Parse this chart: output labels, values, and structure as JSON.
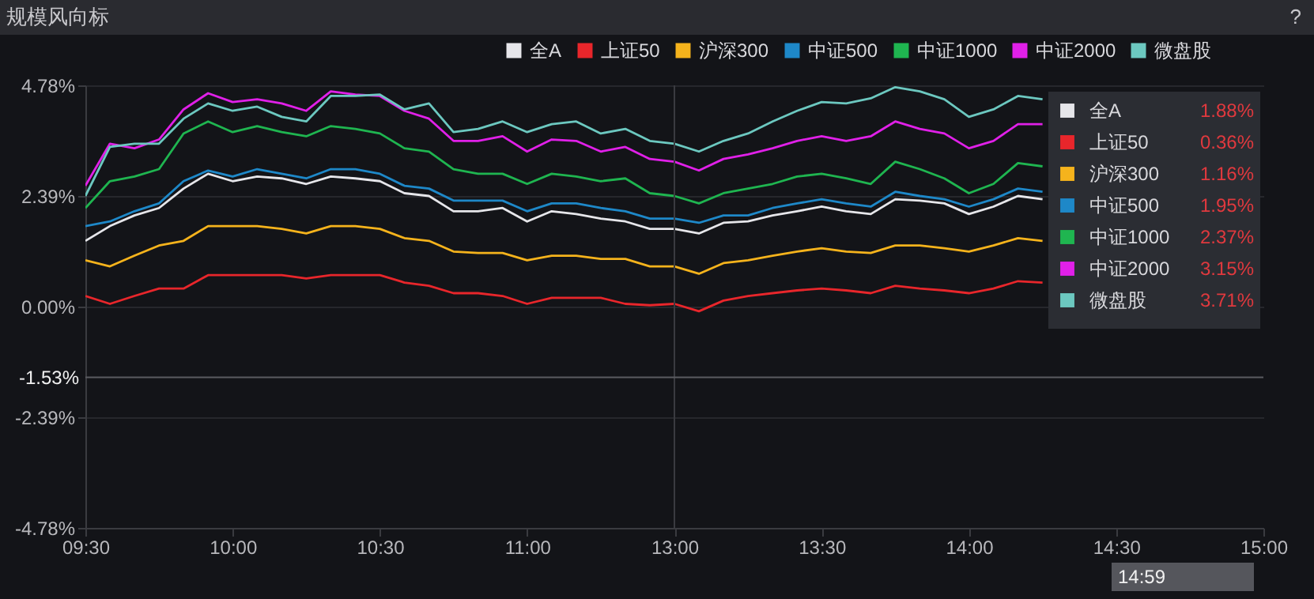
{
  "chart_data": {
    "type": "line",
    "title": "规模风向标",
    "annotations": [
      "?",
      "14:59",
      "1.88%",
      "0.36%",
      "1.16%",
      "1.95%",
      "2.37%",
      "3.15%",
      "3.71%"
    ],
    "categories": [
      "09:30",
      null,
      null,
      null,
      null,
      null,
      "10:00",
      null,
      null,
      null,
      null,
      null,
      "10:30",
      null,
      null,
      null,
      null,
      null,
      "11:00",
      null,
      null,
      null,
      null,
      null,
      "13:00",
      null,
      null,
      null,
      null,
      null,
      "13:30",
      null,
      null,
      null,
      null,
      null,
      "14:00",
      null,
      null,
      null,
      null,
      null,
      "14:30",
      null,
      null,
      null,
      null,
      null,
      "15:00"
    ],
    "ylim": [
      -4.78,
      4.78
    ],
    "yticks": [
      {
        "value": -4.78,
        "label": "-4.78%"
      },
      {
        "value": -2.39,
        "label": "-2.39%"
      },
      {
        "value": 0,
        "label": "0.00%"
      },
      {
        "value": 2.39,
        "label": "2.39%"
      },
      {
        "value": 4.78,
        "label": "4.78%"
      }
    ],
    "grid": "y",
    "legend": "top right",
    "ref_lines": [
      {
        "axis": "x",
        "value": "13:00",
        "label": null,
        "color": "#3a3b40"
      },
      {
        "axis": "y",
        "value": -1.53,
        "label": "-1.53%",
        "color": "#5a5b60"
      }
    ],
    "series": [
      {
        "name": "全A",
        "color": "#e6e6ea",
        "values": [
          1.42,
          1.74,
          1.97,
          2.13,
          2.55,
          2.87,
          2.71,
          2.81,
          2.77,
          2.65,
          2.81,
          2.77,
          2.71,
          2.45,
          2.39,
          2.06,
          2.06,
          2.13,
          1.84,
          2.06,
          2.0,
          1.9,
          1.84,
          1.68,
          1.68,
          1.58,
          1.81,
          1.84,
          1.97,
          2.06,
          2.16,
          2.06,
          2.0,
          2.32,
          2.29,
          2.23,
          2.0,
          2.16,
          2.39,
          2.32,
          null,
          null,
          null,
          null,
          null,
          null,
          null,
          null,
          null
        ]
      },
      {
        "name": "上证50",
        "color": "#e8262b",
        "values": [
          0.23,
          0.06,
          0.23,
          0.39,
          0.39,
          0.68,
          0.68,
          0.68,
          0.68,
          0.61,
          0.68,
          0.68,
          0.68,
          0.52,
          0.45,
          0.29,
          0.29,
          0.23,
          0.06,
          0.19,
          0.19,
          0.19,
          0.06,
          0.03,
          0.06,
          -0.1,
          0.13,
          0.23,
          0.29,
          0.35,
          0.39,
          0.35,
          0.29,
          0.45,
          0.39,
          0.35,
          0.29,
          0.39,
          0.55,
          0.52,
          null,
          null,
          null,
          null,
          null,
          null,
          null,
          null,
          null
        ]
      },
      {
        "name": "沪深300",
        "color": "#f5b31c",
        "values": [
          1.0,
          0.87,
          1.1,
          1.32,
          1.42,
          1.74,
          1.74,
          1.74,
          1.68,
          1.58,
          1.74,
          1.74,
          1.68,
          1.48,
          1.42,
          1.19,
          1.16,
          1.16,
          1.0,
          1.1,
          1.1,
          1.03,
          1.03,
          0.87,
          0.87,
          0.71,
          0.94,
          1.0,
          1.1,
          1.19,
          1.26,
          1.19,
          1.16,
          1.32,
          1.32,
          1.26,
          1.19,
          1.32,
          1.48,
          1.42,
          null,
          null,
          null,
          null,
          null,
          null,
          null,
          null,
          null
        ]
      },
      {
        "name": "中证500",
        "color": "#1e88c8",
        "values": [
          1.74,
          1.84,
          2.06,
          2.23,
          2.71,
          2.94,
          2.81,
          2.97,
          2.87,
          2.77,
          2.97,
          2.97,
          2.87,
          2.61,
          2.55,
          2.29,
          2.29,
          2.29,
          2.06,
          2.23,
          2.23,
          2.13,
          2.06,
          1.9,
          1.9,
          1.81,
          1.97,
          1.97,
          2.13,
          2.23,
          2.32,
          2.23,
          2.16,
          2.48,
          2.39,
          2.32,
          2.16,
          2.32,
          2.55,
          2.48,
          null,
          null,
          null,
          null,
          null,
          null,
          null,
          null,
          null
        ]
      },
      {
        "name": "中证1000",
        "color": "#1fb550",
        "values": [
          2.13,
          2.71,
          2.81,
          2.97,
          3.74,
          4.0,
          3.77,
          3.9,
          3.77,
          3.68,
          3.9,
          3.84,
          3.74,
          3.42,
          3.35,
          2.97,
          2.87,
          2.87,
          2.65,
          2.87,
          2.81,
          2.71,
          2.77,
          2.45,
          2.39,
          2.23,
          2.45,
          2.55,
          2.65,
          2.81,
          2.87,
          2.77,
          2.65,
          3.13,
          2.97,
          2.77,
          2.45,
          2.65,
          3.1,
          3.03,
          null,
          null,
          null,
          null,
          null,
          null,
          null,
          null,
          null
        ]
      },
      {
        "name": "中证2000",
        "color": "#e020e8",
        "values": [
          2.61,
          3.52,
          3.42,
          3.61,
          4.26,
          4.61,
          4.42,
          4.48,
          4.39,
          4.23,
          4.65,
          4.58,
          4.55,
          4.23,
          4.06,
          3.58,
          3.58,
          3.68,
          3.35,
          3.61,
          3.58,
          3.35,
          3.45,
          3.19,
          3.13,
          2.94,
          3.19,
          3.29,
          3.42,
          3.58,
          3.68,
          3.58,
          3.68,
          4.0,
          3.84,
          3.74,
          3.42,
          3.58,
          3.94,
          3.94,
          null,
          null,
          null,
          null,
          null,
          null,
          null,
          null,
          null
        ]
      },
      {
        "name": "微盘股",
        "color": "#6cc8c0",
        "values": [
          2.39,
          3.45,
          3.52,
          3.52,
          4.06,
          4.39,
          4.23,
          4.32,
          4.1,
          4.0,
          4.55,
          4.55,
          4.58,
          4.26,
          4.39,
          3.77,
          3.84,
          4.0,
          3.77,
          3.94,
          4.0,
          3.74,
          3.84,
          3.58,
          3.52,
          3.35,
          3.58,
          3.74,
          4.0,
          4.23,
          4.42,
          4.39,
          4.5,
          4.74,
          4.65,
          4.48,
          4.1,
          4.26,
          4.55,
          4.48,
          null,
          null,
          null,
          null,
          null,
          null,
          null,
          null,
          null
        ]
      }
    ]
  }
}
